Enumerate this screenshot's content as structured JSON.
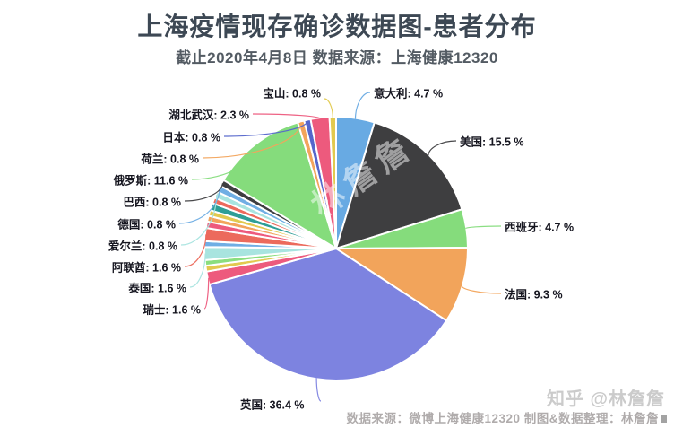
{
  "header": {
    "title": "上海疫情现存确诊数据图-患者分布",
    "subtitle": "截止2020年4月8日 数据来源：上海健康12320"
  },
  "chart_data": {
    "type": "pie",
    "title": "上海疫情现存确诊数据图-患者分布",
    "subtitle": "截止2020年4月8日 数据来源：上海健康12320",
    "unit": "%",
    "start_angle_deg": 0,
    "direction": "clockwise",
    "slices": [
      {
        "label": "意大利",
        "value": 4.7,
        "color": "#68aae3",
        "labeled": true,
        "callout": "意大利: 4.7 %"
      },
      {
        "label": "美国",
        "value": 15.5,
        "color": "#3e3e40",
        "labeled": true,
        "callout": "美国: 15.5 %"
      },
      {
        "label": "西班牙",
        "value": 4.7,
        "color": "#85dc7c",
        "labeled": true,
        "callout": "西班牙: 4.7 %"
      },
      {
        "label": "法国",
        "value": 9.3,
        "color": "#f2a45b",
        "labeled": true,
        "callout": "法国: 9.3 %"
      },
      {
        "label": "英国",
        "value": 36.4,
        "color": "#7d83e0",
        "labeled": true,
        "callout": "英国: 36.4 %"
      },
      {
        "label": "瑞士",
        "value": 1.6,
        "color": "#ed5a7d",
        "labeled": true,
        "callout": "瑞士: 1.6 %"
      },
      {
        "label": "",
        "value": 0.7,
        "color": "#e2c94f",
        "labeled": false
      },
      {
        "label": "",
        "value": 0.7,
        "color": "#8ade7e",
        "labeled": false
      },
      {
        "label": "泰国",
        "value": 1.6,
        "color": "#a8e4df",
        "labeled": true,
        "callout": "泰国: 1.6 %"
      },
      {
        "label": "",
        "value": 0.7,
        "color": "#70aee4",
        "labeled": false
      },
      {
        "label": "阿联酋",
        "value": 1.6,
        "color": "#ec6a5c",
        "labeled": true,
        "callout": "阿联酋: 1.6 %"
      },
      {
        "label": "",
        "value": 0.8,
        "color": "#ed5a7d",
        "labeled": false
      },
      {
        "label": "",
        "value": 0.7,
        "color": "#f2a45c",
        "labeled": false
      },
      {
        "label": "",
        "value": 0.7,
        "color": "#e2c94f",
        "labeled": false
      },
      {
        "label": "",
        "value": 0.9,
        "color": "#2e9e96",
        "labeled": false
      },
      {
        "label": "",
        "value": 0.7,
        "color": "#ec6a5c",
        "labeled": false
      },
      {
        "label": "爱尔兰",
        "value": 0.8,
        "color": "#a8e4df",
        "labeled": true,
        "callout": "爱尔兰: 0.8 %"
      },
      {
        "label": "德国",
        "value": 0.8,
        "color": "#70aee4",
        "labeled": true,
        "callout": "德国: 0.8 %"
      },
      {
        "label": "巴西",
        "value": 0.8,
        "color": "#3e3e40",
        "labeled": true,
        "callout": "巴西: 0.8 %"
      },
      {
        "label": "俄罗斯",
        "value": 11.6,
        "color": "#85dc7c",
        "labeled": true,
        "callout": "俄罗斯: 11.6 %"
      },
      {
        "label": "荷兰",
        "value": 0.8,
        "color": "#f2a45c",
        "labeled": true,
        "callout": "荷兰: 0.8 %"
      },
      {
        "label": "日本",
        "value": 0.8,
        "color": "#5566cb",
        "labeled": true,
        "callout": "日本: 0.8 %"
      },
      {
        "label": "湖北武汉",
        "value": 2.3,
        "color": "#ed5a7d",
        "labeled": true,
        "callout": "湖北武汉: 2.3 %"
      },
      {
        "label": "宝山",
        "value": 0.8,
        "color": "#e2c94f",
        "labeled": true,
        "callout": "宝山: 0.8 %"
      }
    ]
  },
  "watermarks": {
    "pie": "林詹詹",
    "zhihu": "知乎 @林詹詹"
  },
  "footer": {
    "source_line": "数据来源：微博上海健康12320 制图&数据整理：林詹詹"
  }
}
